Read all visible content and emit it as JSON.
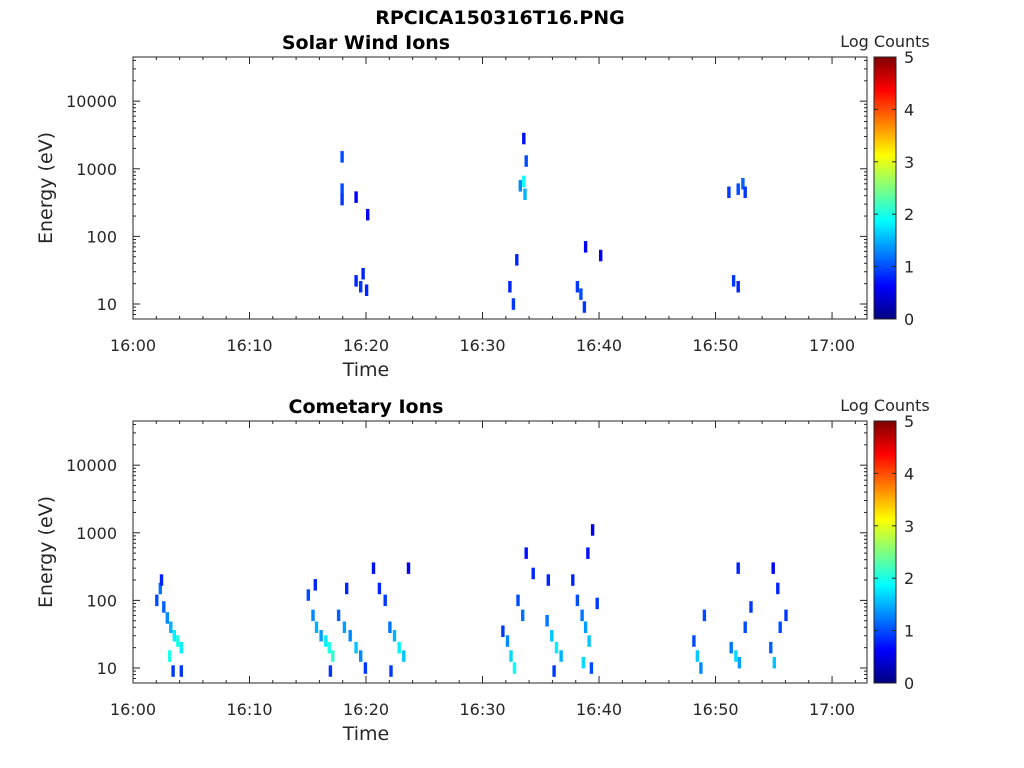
{
  "figure": {
    "title": "RPCICA150316T16.PNG"
  },
  "colorbar": {
    "label": "Log Counts",
    "min": 0,
    "max": 5,
    "ticks": [
      "0",
      "1",
      "2",
      "3",
      "4",
      "5"
    ],
    "colormap": "jet",
    "colors": [
      "#00007f",
      "#0000ff",
      "#007fff",
      "#00ffff",
      "#7fff7f",
      "#ffff00",
      "#ff7f00",
      "#ff0000",
      "#7f0000"
    ]
  },
  "chart_data": [
    {
      "type": "heatmap",
      "title": "Solar Wind Ions",
      "xlabel": "Time",
      "ylabel": "Energy (eV)",
      "x_unit": "minutes after 16:00",
      "xlim": [
        0,
        63
      ],
      "ylim": [
        6,
        45000
      ],
      "y_scale": "log",
      "x_ticks": [
        "16:00",
        "16:10",
        "16:20",
        "16:30",
        "16:40",
        "16:50",
        "17:00"
      ],
      "y_ticks": [
        "10",
        "100",
        "1000",
        "10000"
      ],
      "cells": [
        [
          17.8,
          1500,
          1.0
        ],
        [
          17.8,
          500,
          1.0
        ],
        [
          17.8,
          350,
          0.9
        ],
        [
          19.0,
          380,
          0.6
        ],
        [
          20.0,
          210,
          0.6
        ],
        [
          19.0,
          22,
          0.8
        ],
        [
          19.4,
          18,
          0.9
        ],
        [
          19.6,
          28,
          0.8
        ],
        [
          19.9,
          16,
          0.8
        ],
        [
          32.2,
          18,
          0.8
        ],
        [
          32.5,
          10,
          0.9
        ],
        [
          32.8,
          45,
          0.8
        ],
        [
          33.1,
          560,
          1.3
        ],
        [
          33.4,
          650,
          1.9
        ],
        [
          33.5,
          420,
          1.5
        ],
        [
          33.6,
          1300,
          1.0
        ],
        [
          33.4,
          2800,
          0.7
        ],
        [
          38.0,
          18,
          0.9
        ],
        [
          38.3,
          14,
          1.0
        ],
        [
          38.6,
          9,
          0.9
        ],
        [
          38.7,
          70,
          0.6
        ],
        [
          40.0,
          52,
          0.6
        ],
        [
          51.4,
          22,
          0.9
        ],
        [
          51.8,
          18,
          0.8
        ],
        [
          51.0,
          450,
          0.9
        ],
        [
          51.8,
          500,
          1.0
        ],
        [
          52.2,
          600,
          1.1
        ],
        [
          52.4,
          450,
          0.9
        ]
      ]
    },
    {
      "type": "heatmap",
      "title": "Cometary Ions",
      "xlabel": "Time",
      "ylabel": "Energy (eV)",
      "x_unit": "minutes after 16:00",
      "xlim": [
        0,
        63
      ],
      "ylim": [
        6,
        45000
      ],
      "y_scale": "log",
      "x_ticks": [
        "16:00",
        "16:10",
        "16:20",
        "16:30",
        "16:40",
        "16:50",
        "17:00"
      ],
      "y_ticks": [
        "10",
        "100",
        "1000",
        "10000"
      ],
      "cells": [
        [
          1.9,
          100,
          1.0
        ],
        [
          2.2,
          150,
          1.2
        ],
        [
          2.5,
          80,
          1.1
        ],
        [
          2.8,
          55,
          1.3
        ],
        [
          3.1,
          40,
          1.5
        ],
        [
          3.4,
          30,
          1.8
        ],
        [
          3.7,
          25,
          2.0
        ],
        [
          4.0,
          20,
          1.8
        ],
        [
          3.0,
          15,
          2.0
        ],
        [
          3.3,
          9,
          0.9
        ],
        [
          4.0,
          9,
          0.9
        ],
        [
          2.3,
          200,
          0.8
        ],
        [
          14.9,
          120,
          1.0
        ],
        [
          15.3,
          60,
          1.3
        ],
        [
          15.6,
          40,
          1.5
        ],
        [
          16.0,
          30,
          1.4
        ],
        [
          16.4,
          25,
          1.8
        ],
        [
          16.7,
          20,
          2.0
        ],
        [
          17.0,
          15,
          2.1
        ],
        [
          16.8,
          9,
          0.9
        ],
        [
          15.5,
          170,
          0.8
        ],
        [
          17.5,
          60,
          1.1
        ],
        [
          18.0,
          40,
          1.4
        ],
        [
          18.5,
          30,
          1.3
        ],
        [
          19.0,
          20,
          1.6
        ],
        [
          19.4,
          15,
          1.3
        ],
        [
          19.8,
          10,
          0.9
        ],
        [
          18.2,
          150,
          0.8
        ],
        [
          20.5,
          300,
          0.7
        ],
        [
          21.0,
          150,
          0.8
        ],
        [
          21.5,
          100,
          0.9
        ],
        [
          21.9,
          40,
          1.2
        ],
        [
          22.3,
          30,
          1.5
        ],
        [
          22.7,
          20,
          1.8
        ],
        [
          23.1,
          15,
          1.6
        ],
        [
          22.0,
          9,
          0.9
        ],
        [
          23.5,
          300,
          0.6
        ],
        [
          31.6,
          35,
          0.9
        ],
        [
          32.0,
          25,
          1.3
        ],
        [
          32.3,
          15,
          1.7
        ],
        [
          32.6,
          10,
          1.9
        ],
        [
          32.9,
          100,
          1.0
        ],
        [
          33.3,
          60,
          1.2
        ],
        [
          33.6,
          500,
          0.7
        ],
        [
          34.2,
          250,
          0.8
        ],
        [
          35.4,
          50,
          1.2
        ],
        [
          35.8,
          30,
          1.6
        ],
        [
          36.2,
          20,
          1.8
        ],
        [
          36.6,
          15,
          1.5
        ],
        [
          36.0,
          9,
          0.9
        ],
        [
          35.5,
          200,
          0.8
        ],
        [
          37.6,
          200,
          0.8
        ],
        [
          38.0,
          100,
          1.0
        ],
        [
          38.4,
          60,
          1.2
        ],
        [
          38.7,
          40,
          1.4
        ],
        [
          39.0,
          25,
          1.6
        ],
        [
          38.5,
          12,
          1.7
        ],
        [
          39.2,
          10,
          1.0
        ],
        [
          39.7,
          90,
          0.9
        ],
        [
          38.9,
          500,
          0.7
        ],
        [
          39.3,
          1100,
          0.6
        ],
        [
          48.0,
          25,
          1.0
        ],
        [
          48.3,
          15,
          1.6
        ],
        [
          48.6,
          10,
          1.3
        ],
        [
          48.9,
          60,
          1.0
        ],
        [
          51.2,
          20,
          1.2
        ],
        [
          51.6,
          15,
          1.7
        ],
        [
          51.9,
          12,
          1.4
        ],
        [
          52.4,
          40,
          1.0
        ],
        [
          52.9,
          80,
          0.9
        ],
        [
          51.8,
          300,
          0.8
        ],
        [
          54.6,
          20,
          1.1
        ],
        [
          54.9,
          12,
          1.6
        ],
        [
          55.4,
          40,
          1.0
        ],
        [
          55.9,
          60,
          0.9
        ],
        [
          55.2,
          150,
          0.8
        ],
        [
          54.8,
          300,
          0.6
        ]
      ]
    }
  ]
}
